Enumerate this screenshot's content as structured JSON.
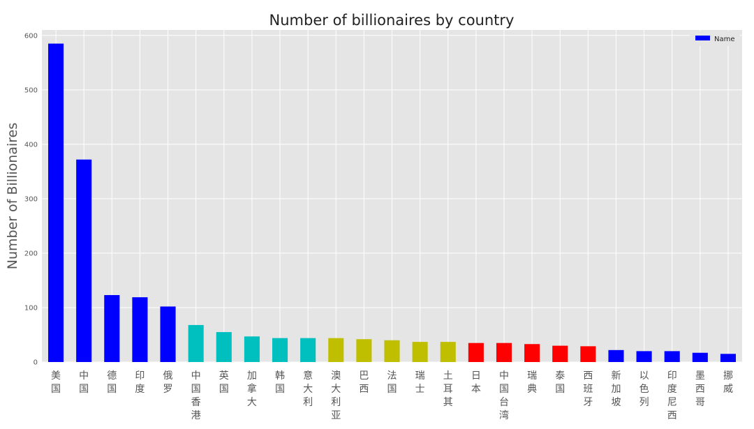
{
  "chart_data": {
    "type": "bar",
    "title": "Number of billionaires by country",
    "xlabel": "",
    "ylabel": "Number of Billionaires",
    "ylim": [
      0,
      610
    ],
    "yticks": [
      0,
      100,
      200,
      300,
      400,
      500,
      600
    ],
    "grid": true,
    "legend": {
      "label": "Name",
      "placement": "top-right",
      "color": "#0000ff"
    },
    "categories": [
      "美国",
      "中国",
      "德国",
      "印度",
      "俄罗",
      "中国香港",
      "英国",
      "加拿大",
      "韩国",
      "意大利",
      "澳大利亚",
      "巴西",
      "法国",
      "瑞士",
      "土耳其",
      "日本",
      "中国台湾",
      "瑞典",
      "泰国",
      "西班牙",
      "新加坡",
      "以色列",
      "印度尼西",
      "墨西哥",
      "挪威"
    ],
    "values": [
      585,
      372,
      123,
      119,
      102,
      68,
      55,
      47,
      44,
      44,
      44,
      42,
      40,
      37,
      37,
      35,
      35,
      33,
      30,
      29,
      22,
      20,
      20,
      17,
      15
    ],
    "bar_colors": [
      "#0000ff",
      "#0000ff",
      "#0000ff",
      "#0000ff",
      "#0000ff",
      "#00bfbf",
      "#00bfbf",
      "#00bfbf",
      "#00bfbf",
      "#00bfbf",
      "#bfbf00",
      "#bfbf00",
      "#bfbf00",
      "#bfbf00",
      "#bfbf00",
      "#ff0000",
      "#ff0000",
      "#ff0000",
      "#ff0000",
      "#ff0000",
      "#0000ff",
      "#0000ff",
      "#0000ff",
      "#0000ff",
      "#0000ff"
    ]
  }
}
